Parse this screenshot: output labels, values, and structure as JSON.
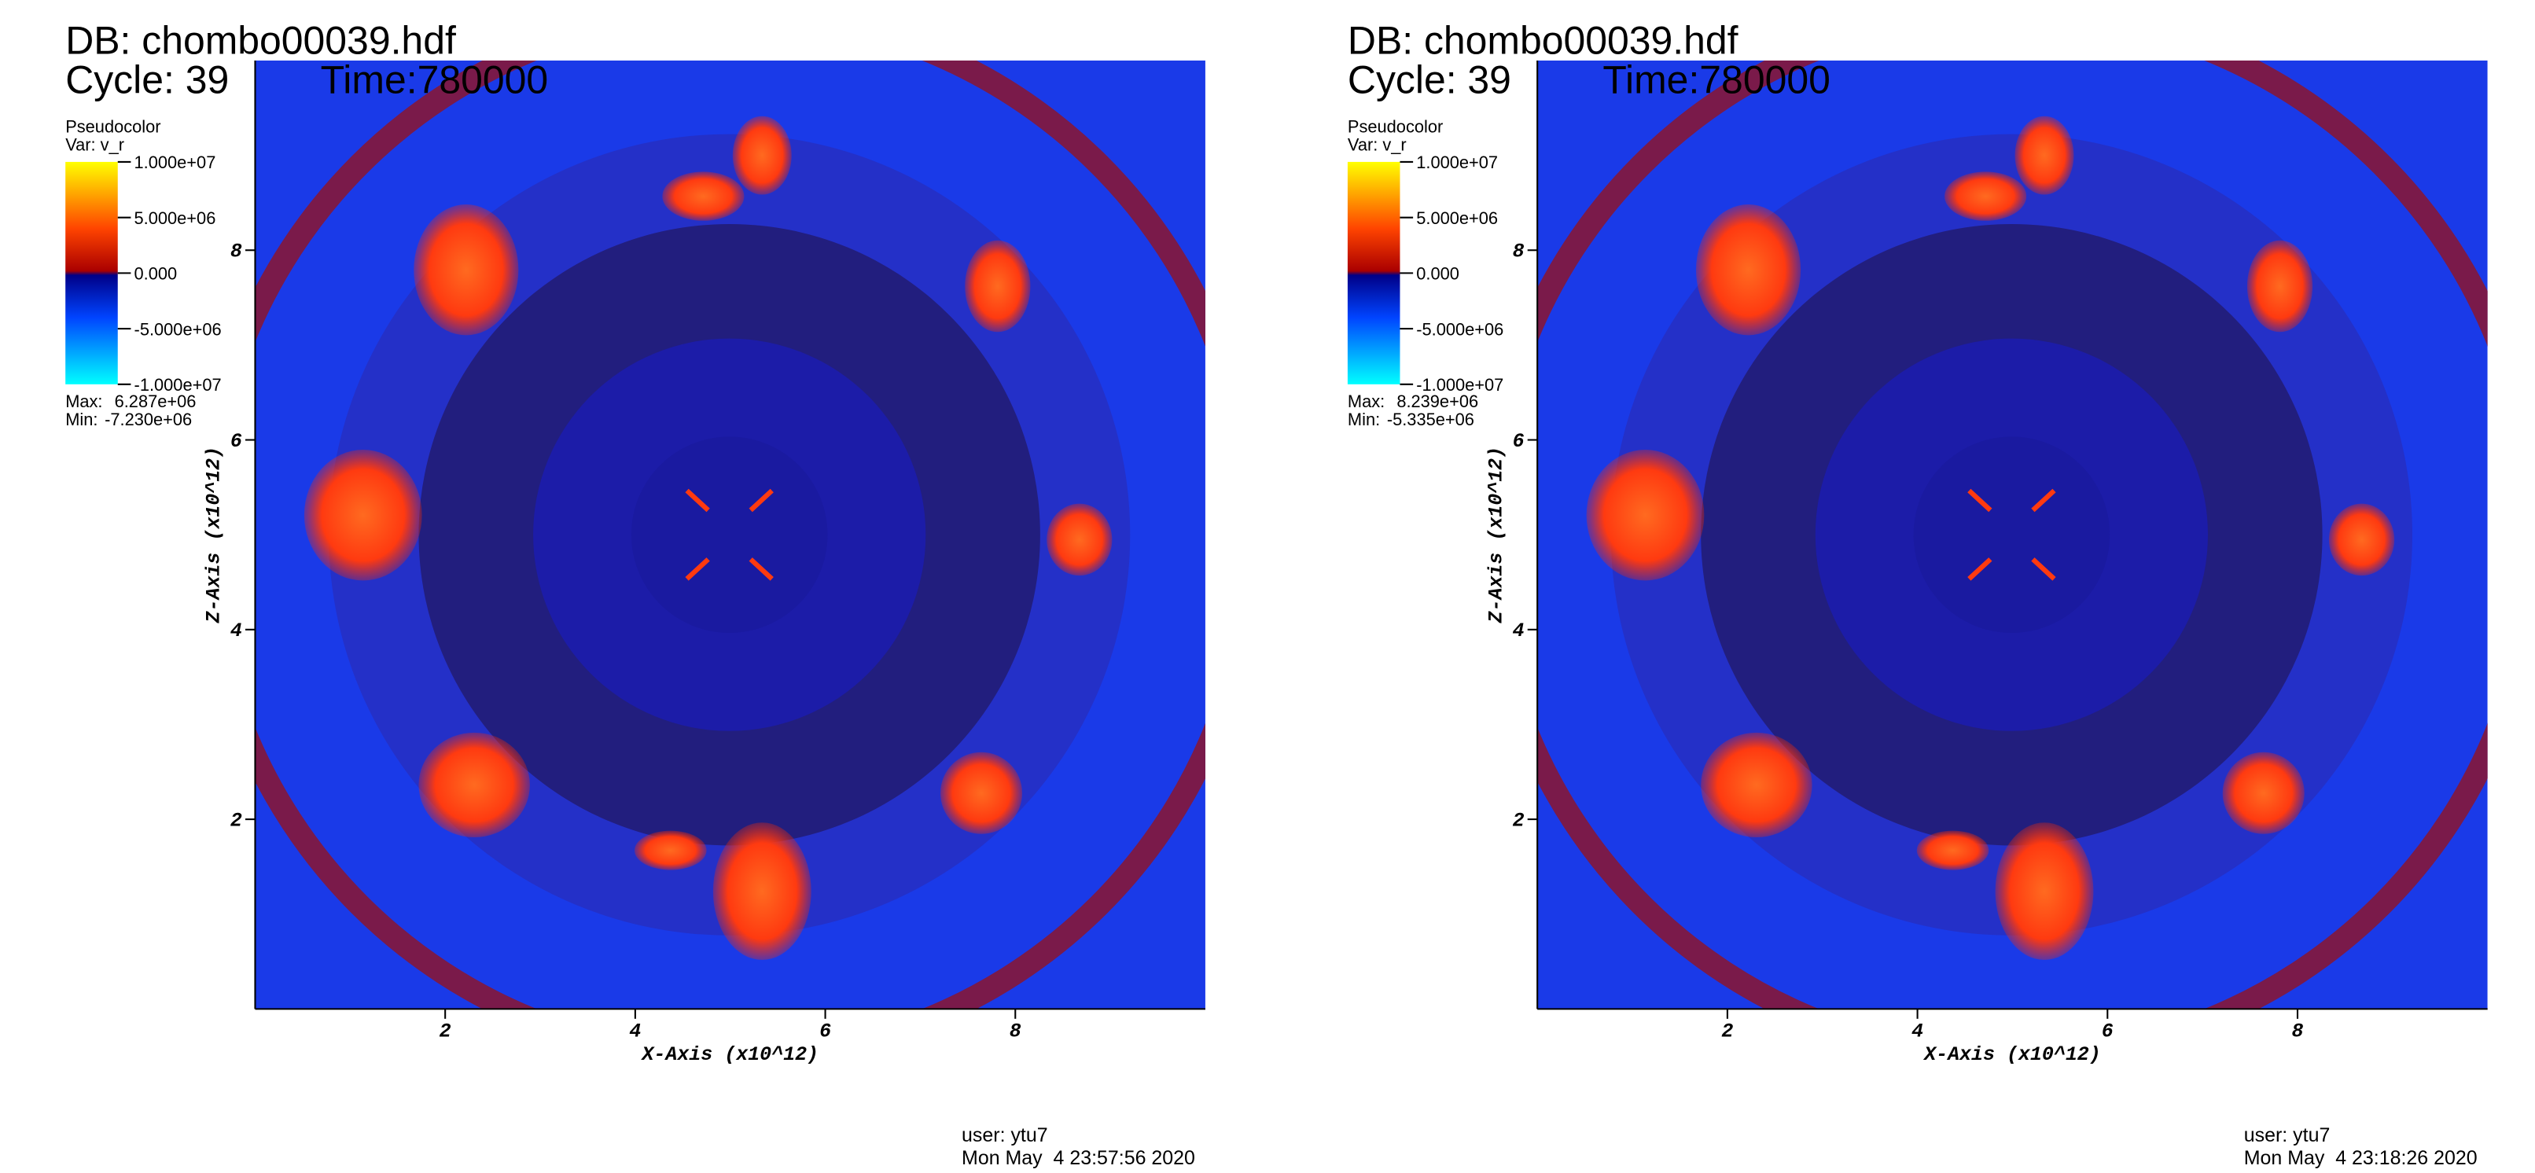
{
  "chart_data": [
    {
      "type": "pseudocolor",
      "db": "DB: chombo00039.hdf",
      "cycle": "Cycle: 39",
      "time": "Time:780000",
      "legend_title": "Pseudocolor",
      "variable": "Var: v_r",
      "colorbar_lim": [
        -10000000,
        10000000
      ],
      "colorbar_ticks": [
        {
          "value": 10000000,
          "label": "1.000e+07"
        },
        {
          "value": 5000000,
          "label": "5.000e+06"
        },
        {
          "value": 0,
          "label": "0.000"
        },
        {
          "value": -5000000,
          "label": "-5.000e+06"
        },
        {
          "value": -10000000,
          "label": "-1.000e+07"
        }
      ],
      "max_label": "Max:",
      "max": {
        "value": 6287000,
        "label": "6.287e+06"
      },
      "min_label": "Min:",
      "min": {
        "value": -7230000,
        "label": "-7.230e+06"
      },
      "xlabel": "X-Axis (x10^12)",
      "ylabel": "Z-Axis (x10^12)",
      "xlim": [
        0,
        10
      ],
      "ylim": [
        0,
        10
      ],
      "xticks": [
        2,
        4,
        6,
        8
      ],
      "yticks": [
        2,
        4,
        6,
        8
      ],
      "user": "user: ytu7",
      "date": "Mon May  4 23:57:56 2020"
    },
    {
      "type": "pseudocolor",
      "db": "DB: chombo00039.hdf",
      "cycle": "Cycle: 39",
      "time": "Time:780000",
      "legend_title": "Pseudocolor",
      "variable": "Var: v_r",
      "colorbar_lim": [
        -10000000,
        10000000
      ],
      "colorbar_ticks": [
        {
          "value": 10000000,
          "label": "1.000e+07"
        },
        {
          "value": 5000000,
          "label": "5.000e+06"
        },
        {
          "value": 0,
          "label": "0.000"
        },
        {
          "value": -5000000,
          "label": "-5.000e+06"
        },
        {
          "value": -10000000,
          "label": "-1.000e+07"
        }
      ],
      "max_label": "Max:",
      "max": {
        "value": 8239000,
        "label": "8.239e+06"
      },
      "min_label": "Min:",
      "min": {
        "value": -5335000,
        "label": "-5.335e+06"
      },
      "xlabel": "X-Axis (x10^12)",
      "ylabel": "Z-Axis (x10^12)",
      "xlim": [
        0,
        10
      ],
      "ylim": [
        0,
        10
      ],
      "xticks": [
        2,
        4,
        6,
        8
      ],
      "yticks": [
        2,
        4,
        6,
        8
      ],
      "user": "user: ytu7",
      "date": "Mon May  4 23:18:26 2020"
    }
  ]
}
